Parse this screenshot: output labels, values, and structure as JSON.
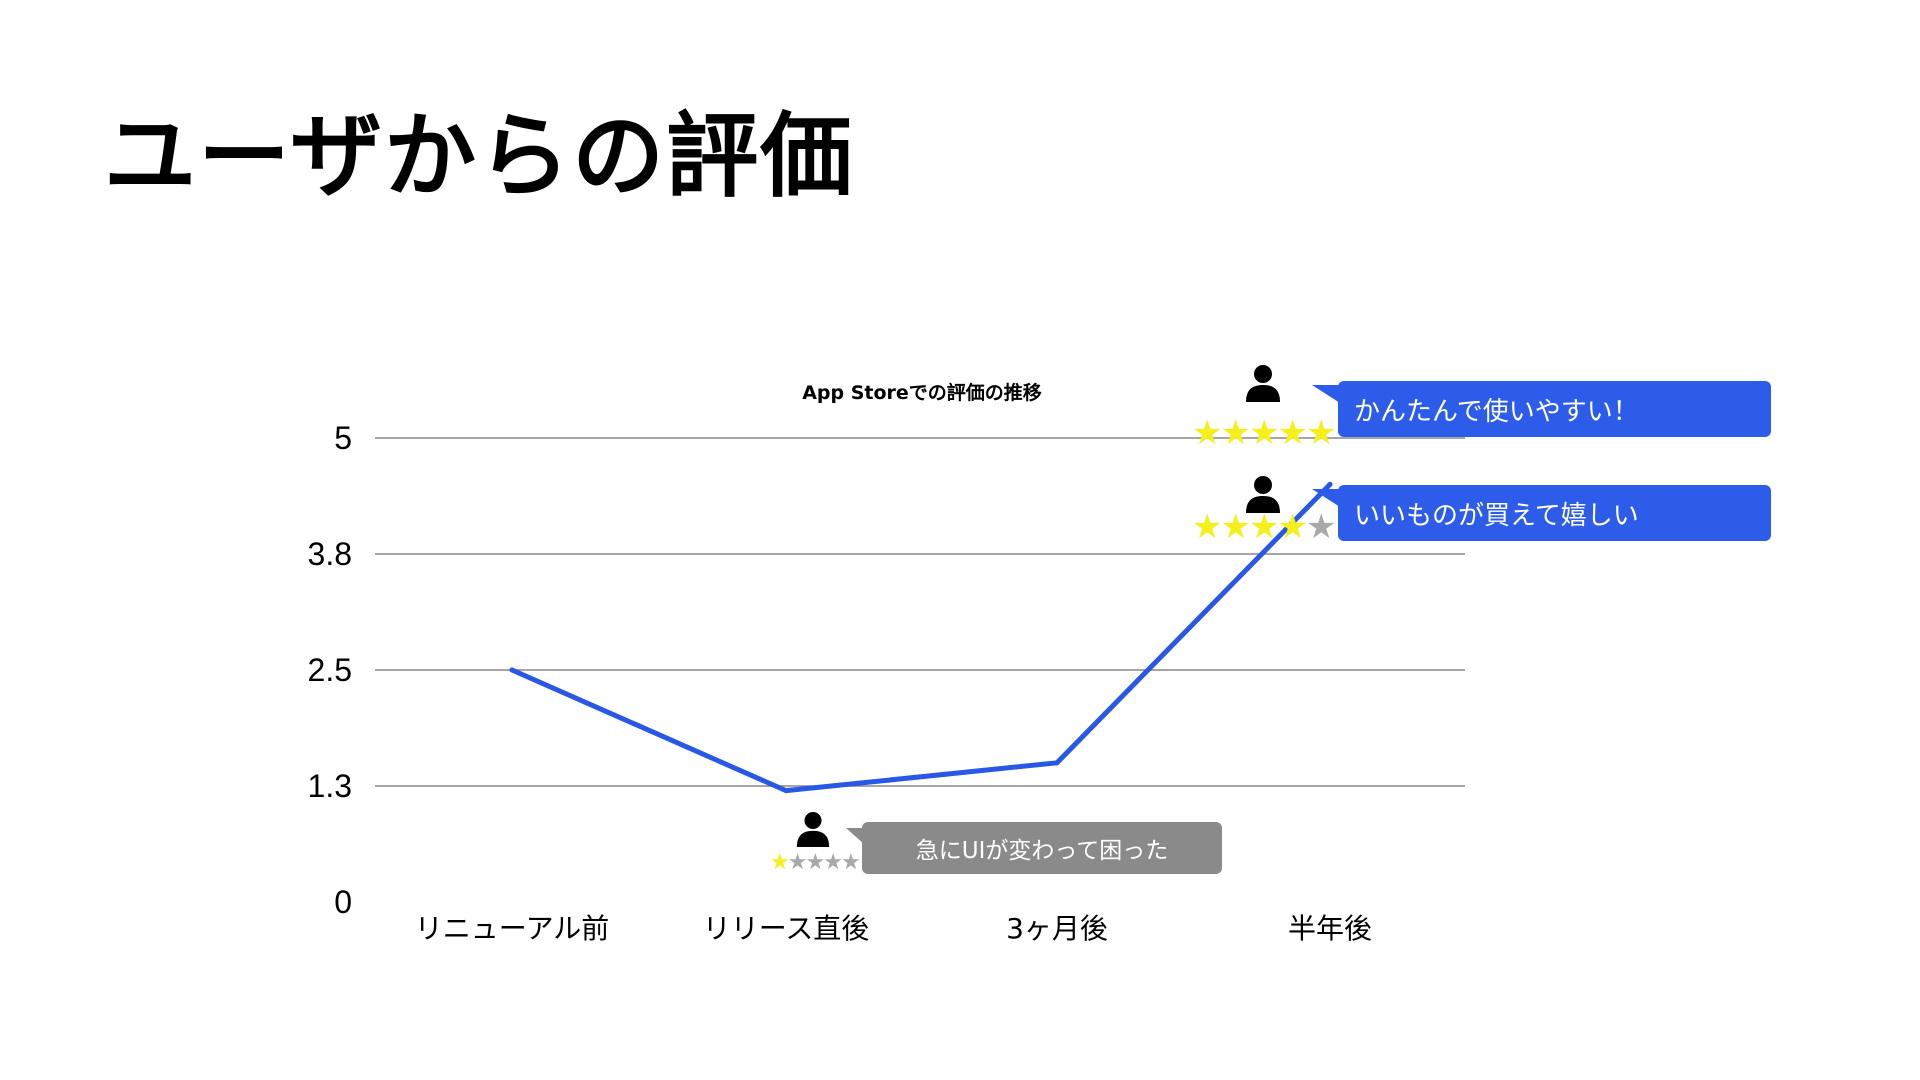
{
  "title": "ユーザからの評価",
  "chart_data": {
    "type": "line",
    "title": "App Storeでの評価の推移",
    "categories": [
      "リニューアル前",
      "リリース直後",
      "3ヶ月後",
      "半年後"
    ],
    "series": [
      {
        "values": [
          2.5,
          1.2,
          1.5,
          4.5
        ],
        "color": "#2957e6"
      }
    ],
    "ylim": [
      0,
      5
    ],
    "yticks": [
      "0",
      "1.3",
      "2.5",
      "3.8",
      "5"
    ],
    "grid": true
  },
  "reviews": [
    {
      "id": "positive-1",
      "comment": "かんたんで使いやすい！",
      "rating": 5,
      "max": 5,
      "color": "#2d5bea"
    },
    {
      "id": "positive-2",
      "comment": "いいものが買えて嬉しい",
      "rating": 4,
      "max": 5,
      "color": "#2d5bea"
    },
    {
      "id": "negative-1",
      "comment": "急にUIが変わって困った",
      "rating": 1,
      "max": 5,
      "color": "#8a8a8a"
    }
  ],
  "colors": {
    "star_filled": "#f5ef1a",
    "star_empty": "#a9a9a9",
    "gridline": "#888888",
    "accent": "#2957e6"
  },
  "icons": {
    "reviewer": "user-icon",
    "rating": "star-icon"
  }
}
